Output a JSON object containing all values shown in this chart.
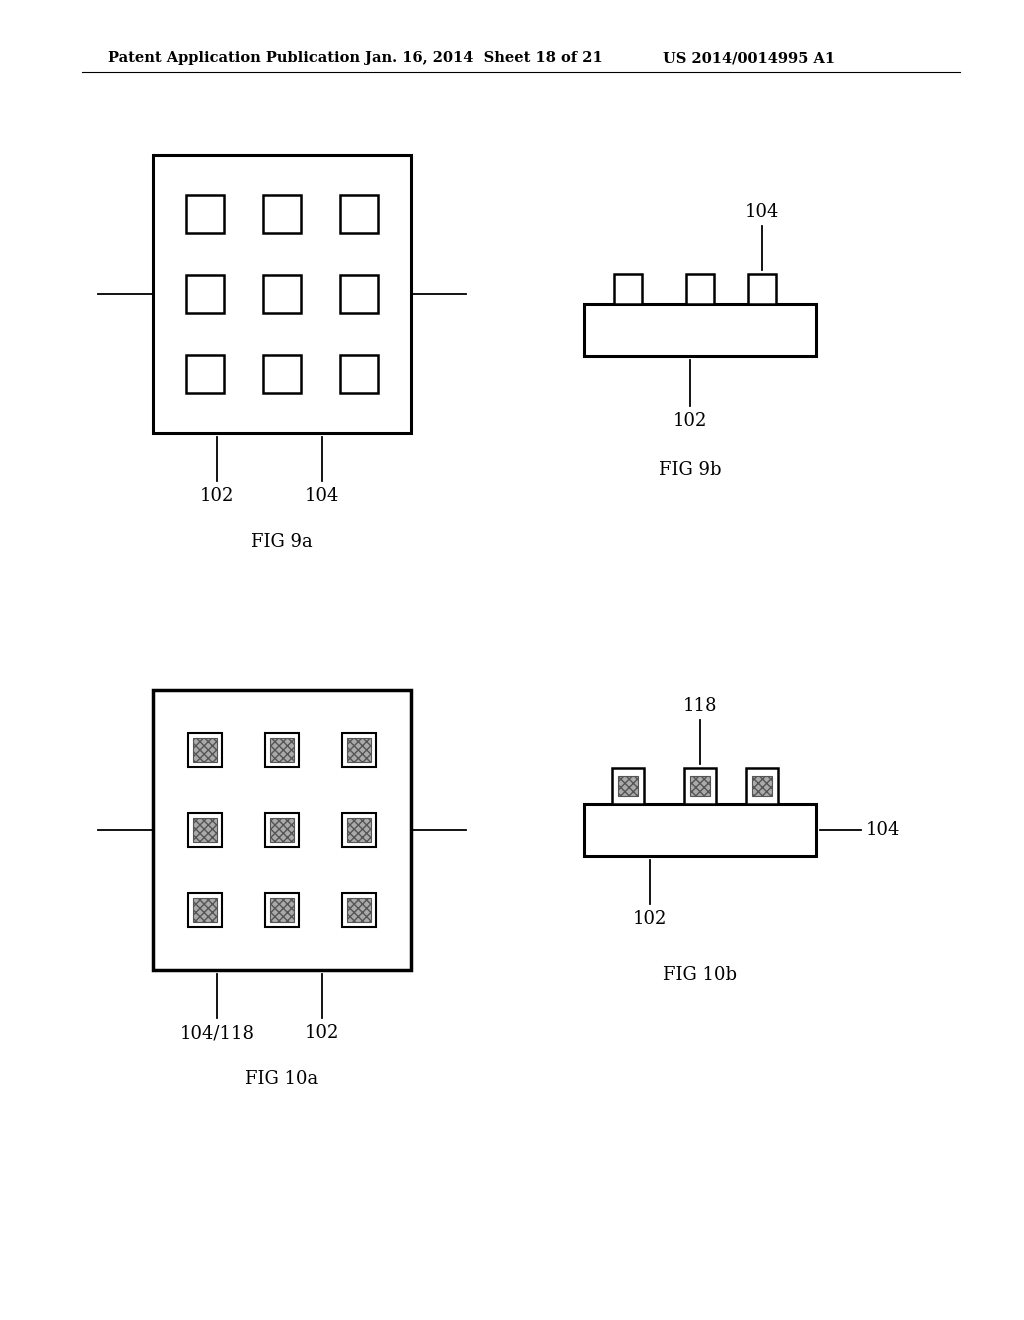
{
  "bg_color": "#ffffff",
  "header_left": "Patent Application Publication",
  "header_mid": "Jan. 16, 2014  Sheet 18 of 21",
  "header_right": "US 2014/0014995 A1",
  "fig9a_label": "FIG 9a",
  "fig9b_label": "FIG 9b",
  "fig10a_label": "FIG 10a",
  "fig10b_label": "FIG 10b",
  "label_102": "102",
  "label_104": "104",
  "label_118": "118",
  "label_104_118": "104/118"
}
